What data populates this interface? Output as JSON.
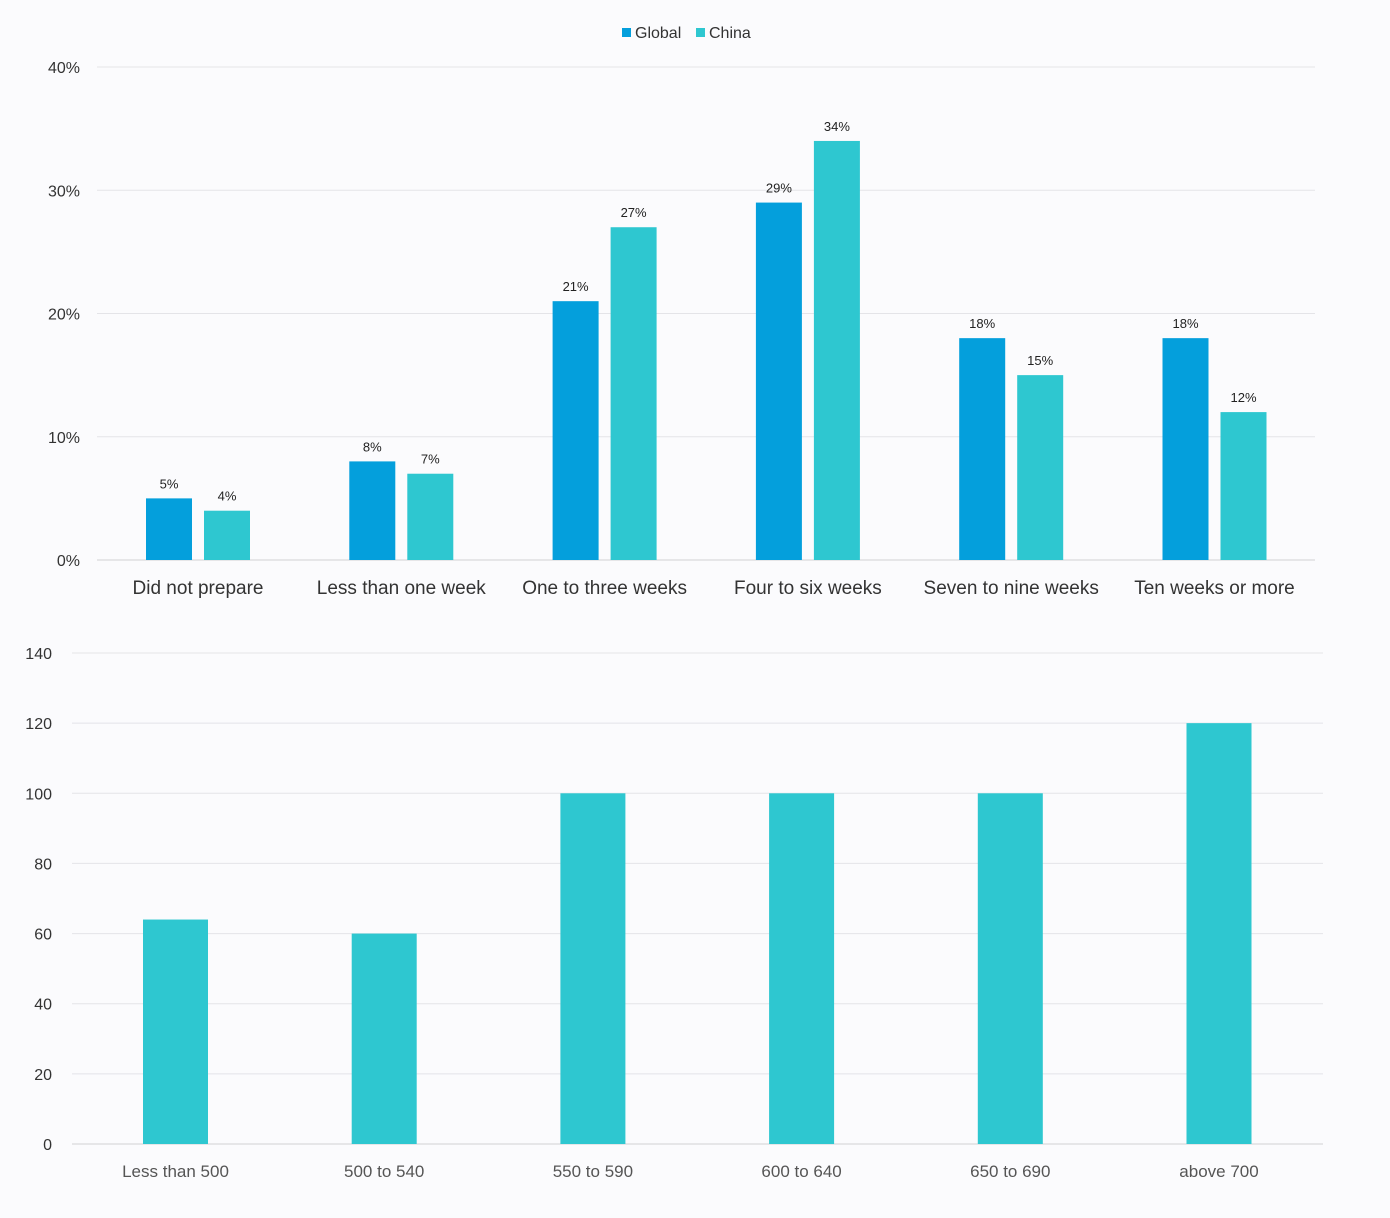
{
  "chart_data": [
    {
      "type": "bar",
      "title": "",
      "xlabel": "",
      "ylabel": "",
      "categories": [
        "Did not prepare",
        "Less than one week",
        "One to three weeks",
        "Four to six weeks",
        "Seven to nine weeks",
        "Ten weeks or more"
      ],
      "series": [
        {
          "name": "Global",
          "color": "#049fdc",
          "values": [
            5,
            8,
            21,
            29,
            18,
            18
          ],
          "labels": [
            "5%",
            "8%",
            "21%",
            "29%",
            "18%",
            "18%"
          ]
        },
        {
          "name": "China",
          "color": "#2ec7d0",
          "values": [
            4,
            7,
            27,
            34,
            15,
            12
          ],
          "labels": [
            "4%",
            "7%",
            "27%",
            "34%",
            "15%",
            "12%"
          ]
        }
      ],
      "ylim": [
        0,
        40
      ],
      "yticks": [
        0,
        10,
        20,
        30,
        40
      ],
      "ytick_labels": [
        "0%",
        "10%",
        "20%",
        "30%",
        "40%"
      ],
      "grid": true,
      "legend": "top-center"
    },
    {
      "type": "bar",
      "title": "",
      "xlabel": "",
      "ylabel": "",
      "categories": [
        "Less than 500",
        "500 to 540",
        "550 to 590",
        "600 to 640",
        "650 to 690",
        "above 700"
      ],
      "series": [
        {
          "name": "",
          "color": "#2ec7d0",
          "values": [
            64,
            60,
            100,
            100,
            100,
            120
          ]
        }
      ],
      "ylim": [
        0,
        140
      ],
      "yticks": [
        0,
        20,
        40,
        60,
        80,
        100,
        120,
        140
      ],
      "ytick_labels": [
        "0",
        "20",
        "40",
        "60",
        "80",
        "100",
        "120",
        "140"
      ],
      "grid": true,
      "legend": "none"
    }
  ]
}
